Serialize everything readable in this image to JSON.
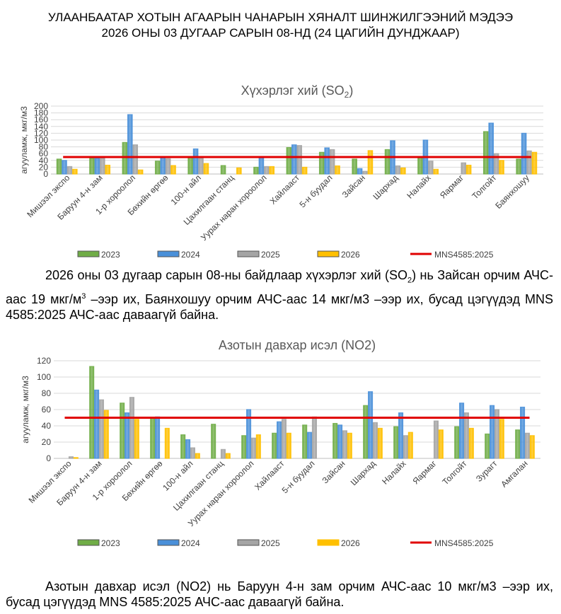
{
  "header": {
    "line1": "УЛААНБААТАР ХОТЫН АГААРЫН ЧАНАРЫН ХЯНАЛТ ШИНЖИЛГЭЭНИЙ МЭДЭЭ",
    "line2": "2026 ОНЫ 03 ДУГААР САРЫН 08-НД (24 ЦАГИЙН ДУНДЖААР)"
  },
  "colors": {
    "2023": "#70ad47",
    "2024": "#4a90d9",
    "2025": "#a5a5a5",
    "2026": "#ffc000",
    "limit": "#e00000"
  },
  "chart_data": [
    {
      "type": "bar",
      "title": "Хүхэрлэг хий (SO2)",
      "title_main": "Хүхэрлэг хий (SO",
      "title_sub": "2",
      "title_end": ")",
      "xlabel": "",
      "ylabel": "агууламж, мкг/м3",
      "ylim": [
        0,
        200
      ],
      "yticks": [
        0,
        20,
        40,
        60,
        80,
        100,
        120,
        140,
        160,
        180,
        200
      ],
      "grid": true,
      "legend_position": "bottom",
      "categories": [
        "Мишээл экспо",
        "Баруун 4-н зам",
        "1-р хороолол",
        "Бөхийн өргөө",
        "100-н айл",
        "Цахилгаан станц",
        "Уурах наран хороолол",
        "Хайлааст",
        "5-н буудал",
        "Зайсан",
        "Шархад",
        "Налайх",
        "Яармаг",
        "Толгойт",
        "Баянхошуу"
      ],
      "series": [
        {
          "name": "2023",
          "values": [
            44,
            46,
            93,
            38,
            48,
            25,
            20,
            78,
            64,
            44,
            72,
            48,
            null,
            125,
            44
          ]
        },
        {
          "name": "2024",
          "values": [
            40,
            46,
            175,
            48,
            74,
            null,
            48,
            86,
            77,
            16,
            98,
            100,
            null,
            150,
            120
          ]
        },
        {
          "name": "2025",
          "values": [
            22,
            46,
            86,
            45,
            46,
            null,
            22,
            84,
            72,
            8,
            24,
            38,
            33,
            60,
            68
          ]
        },
        {
          "name": "2026",
          "values": [
            14,
            26,
            12,
            25,
            31,
            18,
            22,
            20,
            24,
            69,
            18,
            14,
            26,
            40,
            64
          ]
        }
      ],
      "limit_line": {
        "name": "MNS4585:2025",
        "value": 50
      }
    },
    {
      "type": "bar",
      "title": "Азотын давхар исэл (NO2)",
      "title_main": "Азотын давхар исэл (NO2)",
      "title_sub": "",
      "title_end": "",
      "xlabel": "",
      "ylabel": "агууламж, мкг/м3",
      "ylim": [
        0,
        120
      ],
      "yticks": [
        0,
        20,
        40,
        60,
        80,
        100,
        120
      ],
      "grid": true,
      "legend_position": "bottom",
      "categories": [
        "Мишээл экспо",
        "Баруун 4-н зам",
        "1-р хороолол",
        "Бөхийн өргөө",
        "100-н айл",
        "Цахилгаан станц",
        "Уурах наран хороолол",
        "Хайлааст",
        "5-н буудал",
        "Зайсан",
        "Шархад",
        "Налайх",
        "Яармаг",
        "Толгойт",
        "Зурагт",
        "Амгалан"
      ],
      "series": [
        {
          "name": "2023",
          "values": [
            null,
            113,
            68,
            50,
            29,
            42,
            28,
            31,
            41,
            43,
            65,
            39,
            null,
            39,
            30,
            35
          ]
        },
        {
          "name": "2024",
          "values": [
            null,
            84,
            56,
            51,
            23,
            null,
            60,
            45,
            32,
            41,
            82,
            56,
            null,
            68,
            65,
            63
          ]
        },
        {
          "name": "2025",
          "values": [
            2,
            72,
            75,
            null,
            13,
            11,
            25,
            48,
            51,
            34,
            44,
            28,
            46,
            56,
            60,
            31
          ]
        },
        {
          "name": "2026",
          "values": [
            1,
            59,
            48,
            37,
            6,
            6,
            29,
            31,
            null,
            31,
            37,
            32,
            35,
            37,
            48,
            28
          ]
        }
      ],
      "limit_line": {
        "name": "MNS4585:2025",
        "value": 50
      }
    }
  ],
  "paragraphs": {
    "so2_a": "2026 оны 03 дугаар сарын 08-ны байдлаар хүхэрлэг хий (SO",
    "so2_sub": "2",
    "so2_b": ") нь Зайсан орчим АЧС-аас 19 мкг/м",
    "so2_sup": "3",
    "so2_c": " –ээр их, Баянхошуу орчим АЧС-аас 14 мкг/м3 –ээр их, бусад цэгүүдэд MNS 4585:2025 АЧС-аас даваагүй байна.",
    "no2": "Азотын давхар исэл (NO2) нь Баруун 4-н зам орчим АЧС-аас 10 мкг/м3 –ээр их, бусад цэгүүдэд MNS 4585:2025 АЧС-аас даваагүй байна."
  }
}
